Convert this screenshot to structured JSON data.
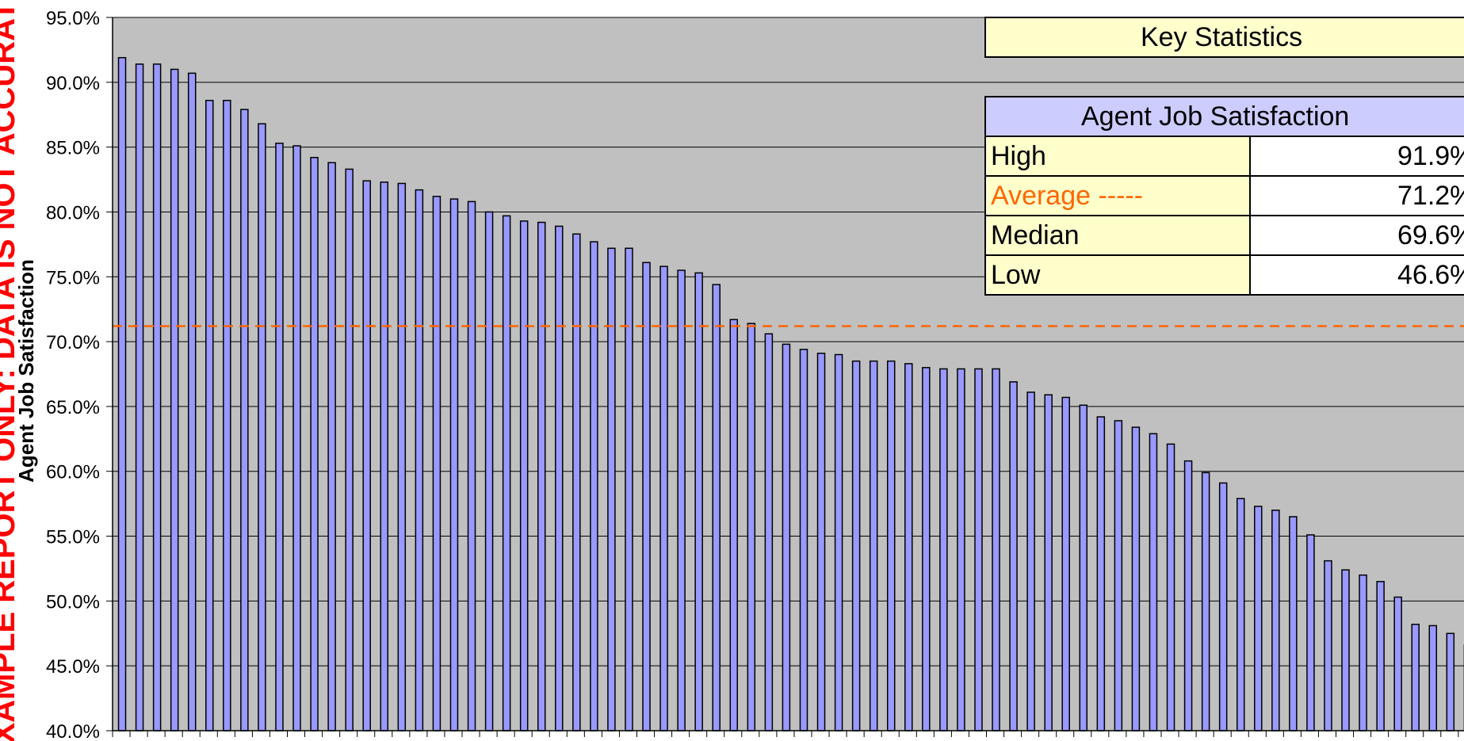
{
  "watermark": "EXAMPLE REPORT ONLY: DATA IS NOT ACCURATE",
  "key_statistics": {
    "title": "Key Statistics",
    "table_title": "Agent Job Satisfaction",
    "rows": [
      {
        "label": "High",
        "value": "91.9%"
      },
      {
        "label": "Average -----",
        "value": "71.2%",
        "color": "#ff6600"
      },
      {
        "label": "Median",
        "value": "69.6%"
      },
      {
        "label": "Low",
        "value": "46.6%"
      }
    ]
  },
  "colors": {
    "plot_background": "#c0c0c0",
    "bar_fill": "#9999ff",
    "bar_stroke": "#000000",
    "average_line": "#ff6600",
    "watermark": "#ff0000"
  },
  "chart_data": {
    "type": "bar",
    "ylabel": "Agent Job Satisfaction",
    "xlabel": "",
    "ylim": [
      40,
      95
    ],
    "yticks": [
      "40.0%",
      "45.0%",
      "50.0%",
      "55.0%",
      "60.0%",
      "65.0%",
      "70.0%",
      "75.0%",
      "80.0%",
      "85.0%",
      "90.0%",
      "95.0%"
    ],
    "grid": true,
    "average_line": 71.2,
    "values": [
      91.9,
      91.4,
      91.4,
      91.0,
      90.7,
      88.6,
      88.6,
      87.9,
      86.8,
      85.3,
      85.1,
      84.2,
      83.8,
      83.3,
      82.4,
      82.3,
      82.2,
      81.7,
      81.2,
      81.0,
      80.8,
      80.0,
      79.7,
      79.3,
      79.2,
      78.9,
      78.3,
      77.7,
      77.2,
      77.2,
      76.1,
      75.8,
      75.5,
      75.3,
      74.4,
      71.7,
      71.4,
      70.6,
      69.8,
      69.4,
      69.1,
      69.0,
      68.5,
      68.5,
      68.5,
      68.3,
      68.0,
      67.9,
      67.9,
      67.9,
      67.9,
      66.9,
      66.1,
      65.9,
      65.7,
      65.1,
      64.2,
      63.9,
      63.4,
      62.9,
      62.1,
      60.8,
      59.9,
      59.1,
      57.9,
      57.3,
      57.0,
      56.5,
      55.1,
      53.1,
      52.4,
      52.0,
      51.5,
      50.3,
      48.2,
      48.1,
      47.5,
      46.6
    ]
  }
}
